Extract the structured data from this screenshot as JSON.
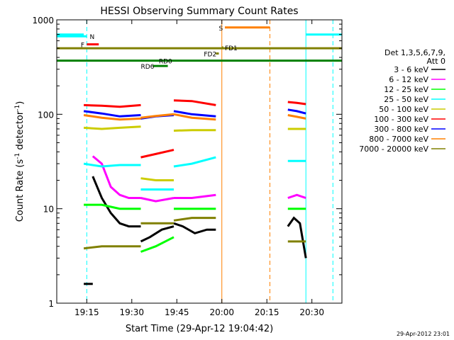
{
  "chart_data": {
    "type": "line",
    "title": "HESSI Observing Summary Count Rates",
    "xlabel": "Start Time (29-Apr-12 19:04:42)",
    "ylabel_main": "Count Rate (s",
    "ylabel_sup1": "-1",
    "ylabel_mid": " detector",
    "ylabel_sup2": "-1",
    "ylabel_end": ")",
    "y_scale": "log",
    "ylim": [
      1,
      1000
    ],
    "xlim": [
      "19:05",
      "20:40"
    ],
    "x_ticks": [
      "19:15",
      "19:30",
      "19:45",
      "20:00",
      "20:15",
      "20:30"
    ],
    "y_ticks": [
      "1",
      "10",
      "100",
      "1000"
    ],
    "legend_position": "right",
    "legend_header": [
      "Det 1,3,5,6,7,9,",
      "Att 0"
    ],
    "timestamp": "29-Apr-2012 23:01",
    "series": [
      {
        "name": "3 - 6 keV",
        "color": "#000000",
        "segments": [
          {
            "x": [
              "19:14",
              "19:17"
            ],
            "y": [
              1.6,
              1.6
            ]
          },
          {
            "x": [
              "19:17",
              "19:20",
              "19:23",
              "19:26",
              "19:29",
              "19:33"
            ],
            "y": [
              22,
              13,
              9,
              7,
              6.5,
              6.5
            ]
          },
          {
            "x": [
              "19:33",
              "19:36",
              "19:40",
              "19:44"
            ],
            "y": [
              4.5,
              5,
              6,
              6.5
            ]
          },
          {
            "x": [
              "19:44",
              "19:47",
              "19:51",
              "19:55",
              "19:58"
            ],
            "y": [
              7,
              6.5,
              5.5,
              6,
              6
            ]
          },
          {
            "x": [
              "20:22",
              "20:24",
              "20:26",
              "20:28"
            ],
            "y": [
              6.5,
              8,
              7,
              3
            ]
          }
        ]
      },
      {
        "name": "6 - 12 keV",
        "color": "#ff00ff",
        "segments": [
          {
            "x": [
              "19:17",
              "19:20",
              "19:23",
              "19:26",
              "19:29",
              "19:33"
            ],
            "y": [
              36,
              30,
              17,
              14,
              13,
              13
            ]
          },
          {
            "x": [
              "19:33",
              "19:38",
              "19:44"
            ],
            "y": [
              13,
              12,
              13
            ]
          },
          {
            "x": [
              "19:44",
              "19:50",
              "19:58"
            ],
            "y": [
              13,
              13,
              14
            ]
          },
          {
            "x": [
              "20:22",
              "20:25",
              "20:28"
            ],
            "y": [
              13,
              14,
              13
            ]
          }
        ]
      },
      {
        "name": "12 - 25 keV",
        "color": "#00ff00",
        "segments": [
          {
            "x": [
              "19:14",
              "19:20",
              "19:26",
              "19:33"
            ],
            "y": [
              11,
              11,
              10,
              10
            ]
          },
          {
            "x": [
              "19:33",
              "19:38",
              "19:44"
            ],
            "y": [
              3.5,
              4,
              5
            ]
          },
          {
            "x": [
              "19:44",
              "19:50",
              "19:58"
            ],
            "y": [
              10,
              10,
              10
            ]
          },
          {
            "x": [
              "20:22",
              "20:25",
              "20:28"
            ],
            "y": [
              10,
              10,
              10
            ]
          }
        ]
      },
      {
        "name": "25 - 50 keV",
        "color": "#00ffff",
        "segments": [
          {
            "x": [
              "19:05",
              "19:14"
            ],
            "y": [
              700,
              700
            ]
          },
          {
            "x": [
              "19:14",
              "19:20",
              "19:26",
              "19:33"
            ],
            "y": [
              30,
              28,
              29,
              29
            ]
          },
          {
            "x": [
              "19:33",
              "19:38",
              "19:44"
            ],
            "y": [
              16,
              16,
              16
            ]
          },
          {
            "x": [
              "19:44",
              "19:50",
              "19:58"
            ],
            "y": [
              28,
              30,
              35
            ]
          },
          {
            "x": [
              "20:22",
              "20:25",
              "20:28"
            ],
            "y": [
              32,
              32,
              32
            ]
          },
          {
            "x": [
              "20:28",
              "20:40"
            ],
            "y": [
              700,
              700
            ]
          }
        ]
      },
      {
        "name": "50 - 100 keV",
        "color": "#cccc00",
        "segments": [
          {
            "x": [
              "19:14",
              "19:20",
              "19:26",
              "19:33"
            ],
            "y": [
              72,
              70,
              72,
              74
            ]
          },
          {
            "x": [
              "19:33",
              "19:38",
              "19:44"
            ],
            "y": [
              21,
              20,
              20
            ]
          },
          {
            "x": [
              "19:44",
              "19:50",
              "19:58"
            ],
            "y": [
              67,
              68,
              68
            ]
          },
          {
            "x": [
              "20:22",
              "20:25",
              "20:28"
            ],
            "y": [
              70,
              70,
              70
            ]
          }
        ]
      },
      {
        "name": "100 - 300 keV",
        "color": "#ff0000",
        "segments": [
          {
            "x": [
              "19:14",
              "19:20",
              "19:26",
              "19:33"
            ],
            "y": [
              125,
              123,
              120,
              125
            ]
          },
          {
            "x": [
              "19:33",
              "19:38",
              "19:44"
            ],
            "y": [
              35,
              38,
              42
            ]
          },
          {
            "x": [
              "19:44",
              "19:50",
              "19:58"
            ],
            "y": [
              140,
              138,
              125
            ]
          },
          {
            "x": [
              "20:22",
              "20:25",
              "20:28"
            ],
            "y": [
              135,
              132,
              128
            ]
          }
        ]
      },
      {
        "name": "300 - 800 keV",
        "color": "#0000ff",
        "segments": [
          {
            "x": [
              "19:14",
              "19:20",
              "19:26",
              "19:33"
            ],
            "y": [
              108,
              102,
              95,
              98
            ]
          },
          {
            "x": [
              "19:33",
              "19:38",
              "19:44"
            ],
            "y": [
              90,
              95,
              98
            ]
          },
          {
            "x": [
              "19:44",
              "19:50",
              "19:58"
            ],
            "y": [
              108,
              100,
              95
            ]
          },
          {
            "x": [
              "20:22",
              "20:25",
              "20:28"
            ],
            "y": [
              112,
              108,
              102
            ]
          }
        ]
      },
      {
        "name": "800 - 7000 keV",
        "color": "#ff8000",
        "segments": [
          {
            "x": [
              "19:14",
              "19:20",
              "19:26",
              "19:33"
            ],
            "y": [
              98,
              92,
              88,
              90
            ]
          },
          {
            "x": [
              "19:33",
              "19:38",
              "19:44"
            ],
            "y": [
              92,
              96,
              100
            ]
          },
          {
            "x": [
              "19:44",
              "19:50",
              "19:58"
            ],
            "y": [
              100,
              92,
              88
            ]
          },
          {
            "x": [
              "20:22",
              "20:25",
              "20:28"
            ],
            "y": [
              98,
              94,
              90
            ]
          }
        ]
      },
      {
        "name": "7000 - 20000 keV",
        "color": "#808000",
        "segments": [
          {
            "x": [
              "19:05",
              "20:40"
            ],
            "y": [
              500,
              500
            ]
          },
          {
            "x": [
              "19:14",
              "19:20",
              "19:26",
              "19:33"
            ],
            "y": [
              3.8,
              4,
              4,
              4
            ]
          },
          {
            "x": [
              "19:33",
              "19:38",
              "19:44"
            ],
            "y": [
              7,
              7,
              7
            ]
          },
          {
            "x": [
              "19:44",
              "19:50",
              "19:58"
            ],
            "y": [
              7.5,
              8,
              8
            ]
          },
          {
            "x": [
              "20:22",
              "20:25",
              "20:28"
            ],
            "y": [
              4.5,
              4.5,
              4.5
            ]
          }
        ]
      }
    ],
    "flag_bars": [
      {
        "label": "N",
        "color": "#00ffff",
        "x": [
          "19:05",
          "19:15"
        ],
        "y": 670,
        "label_at": "19:16"
      },
      {
        "label": "F",
        "color": "#ff0000",
        "x": [
          "19:15",
          "19:19"
        ],
        "y": 550,
        "label_at": "19:13"
      },
      {
        "label": "FD1",
        "color": "#808000",
        "x": [
          "20:00",
          "20:00"
        ],
        "y": 510,
        "label_at": "20:01"
      },
      {
        "label": "FD2",
        "color": "#808000",
        "x": [
          "19:58",
          "19:59"
        ],
        "y": 440,
        "label_at": "19:54"
      },
      {
        "label": "RD0",
        "color": "#008000",
        "x": [
          "19:05",
          "20:40"
        ],
        "y": 370,
        "label_at": "19:39"
      },
      {
        "label": "RD6",
        "color": "#008000",
        "x": [
          "19:37",
          "19:42"
        ],
        "y": 325,
        "label_at": "19:33"
      },
      {
        "label": "S",
        "color": "#ff8000",
        "x": [
          "20:01",
          "20:16"
        ],
        "y": 830,
        "label_at": "19:59"
      }
    ],
    "markers": [
      {
        "x": "19:05",
        "color": "#00ffff",
        "style": "solid"
      },
      {
        "x": "19:15",
        "color": "#00ffff",
        "style": "dashed"
      },
      {
        "x": "20:00",
        "color": "#ff8000",
        "style": "solid"
      },
      {
        "x": "20:16",
        "color": "#ff8000",
        "style": "dashed"
      },
      {
        "x": "20:28",
        "color": "#00ffff",
        "style": "solid"
      },
      {
        "x": "20:37",
        "color": "#00ffff",
        "style": "dashed"
      }
    ]
  }
}
